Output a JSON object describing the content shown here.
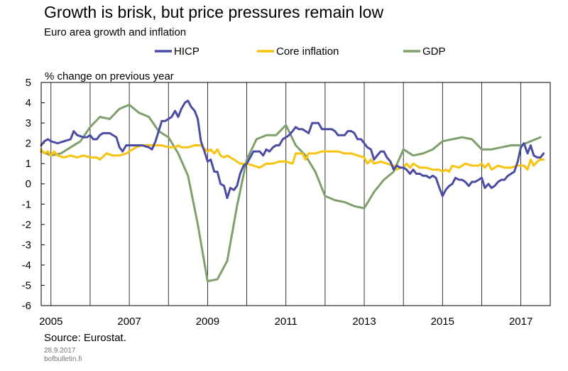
{
  "chart_data": {
    "type": "line",
    "title": "Growth is brisk, but price pressures remain low",
    "subtitle": "Euro area growth and inflation",
    "ylabel": "% change on previous year",
    "xlabel": "",
    "ylim": [
      -6,
      5
    ],
    "xlim": [
      2004.75,
      2017.75
    ],
    "y_ticks": [
      5,
      4,
      3,
      2,
      1,
      0,
      -1,
      -2,
      -3,
      -4,
      -5,
      -6
    ],
    "x_tick_labels": [
      "2005",
      "2007",
      "2009",
      "2011",
      "2013",
      "2015",
      "2017"
    ],
    "grid": "vertical",
    "legend_position": "top",
    "series": [
      {
        "name": "HICP",
        "color": "#4b4ca3",
        "points": [
          [
            2004.75,
            1.9
          ],
          [
            2004.83,
            2.1
          ],
          [
            2004.92,
            2.2
          ],
          [
            2005.0,
            2.1
          ],
          [
            2005.17,
            2.0
          ],
          [
            2005.33,
            2.1
          ],
          [
            2005.5,
            2.2
          ],
          [
            2005.58,
            2.6
          ],
          [
            2005.67,
            2.4
          ],
          [
            2005.83,
            2.3
          ],
          [
            2005.92,
            2.3
          ],
          [
            2006.0,
            2.4
          ],
          [
            2006.08,
            2.2
          ],
          [
            2006.17,
            2.2
          ],
          [
            2006.25,
            2.4
          ],
          [
            2006.33,
            2.5
          ],
          [
            2006.5,
            2.5
          ],
          [
            2006.67,
            2.3
          ],
          [
            2006.75,
            1.8
          ],
          [
            2006.83,
            1.6
          ],
          [
            2006.92,
            1.9
          ],
          [
            2007.0,
            1.9
          ],
          [
            2007.17,
            1.9
          ],
          [
            2007.33,
            1.9
          ],
          [
            2007.5,
            1.8
          ],
          [
            2007.58,
            1.7
          ],
          [
            2007.67,
            2.1
          ],
          [
            2007.75,
            2.6
          ],
          [
            2007.83,
            3.1
          ],
          [
            2007.92,
            3.1
          ],
          [
            2008.0,
            3.2
          ],
          [
            2008.08,
            3.3
          ],
          [
            2008.17,
            3.6
          ],
          [
            2008.25,
            3.3
          ],
          [
            2008.33,
            3.7
          ],
          [
            2008.42,
            4.0
          ],
          [
            2008.5,
            4.1
          ],
          [
            2008.58,
            3.8
          ],
          [
            2008.67,
            3.6
          ],
          [
            2008.75,
            3.2
          ],
          [
            2008.83,
            2.1
          ],
          [
            2008.92,
            1.6
          ],
          [
            2009.0,
            1.1
          ],
          [
            2009.08,
            1.2
          ],
          [
            2009.17,
            0.6
          ],
          [
            2009.25,
            0.6
          ],
          [
            2009.33,
            0.0
          ],
          [
            2009.42,
            -0.1
          ],
          [
            2009.5,
            -0.7
          ],
          [
            2009.58,
            -0.2
          ],
          [
            2009.67,
            -0.3
          ],
          [
            2009.75,
            -0.1
          ],
          [
            2009.83,
            0.5
          ],
          [
            2009.92,
            0.9
          ],
          [
            2010.0,
            1.0
          ],
          [
            2010.17,
            1.6
          ],
          [
            2010.33,
            1.6
          ],
          [
            2010.42,
            1.4
          ],
          [
            2010.5,
            1.7
          ],
          [
            2010.58,
            1.6
          ],
          [
            2010.67,
            1.8
          ],
          [
            2010.75,
            1.9
          ],
          [
            2010.83,
            1.9
          ],
          [
            2010.92,
            2.2
          ],
          [
            2011.0,
            2.3
          ],
          [
            2011.08,
            2.4
          ],
          [
            2011.17,
            2.6
          ],
          [
            2011.25,
            2.8
          ],
          [
            2011.33,
            2.7
          ],
          [
            2011.42,
            2.7
          ],
          [
            2011.5,
            2.6
          ],
          [
            2011.58,
            2.5
          ],
          [
            2011.67,
            3.0
          ],
          [
            2011.83,
            3.0
          ],
          [
            2011.92,
            2.7
          ],
          [
            2012.0,
            2.7
          ],
          [
            2012.17,
            2.7
          ],
          [
            2012.25,
            2.6
          ],
          [
            2012.33,
            2.4
          ],
          [
            2012.5,
            2.4
          ],
          [
            2012.58,
            2.6
          ],
          [
            2012.67,
            2.6
          ],
          [
            2012.75,
            2.5
          ],
          [
            2012.83,
            2.2
          ],
          [
            2012.92,
            2.2
          ],
          [
            2013.0,
            2.0
          ],
          [
            2013.08,
            1.8
          ],
          [
            2013.17,
            1.7
          ],
          [
            2013.25,
            1.2
          ],
          [
            2013.33,
            1.4
          ],
          [
            2013.42,
            1.6
          ],
          [
            2013.5,
            1.6
          ],
          [
            2013.58,
            1.3
          ],
          [
            2013.67,
            1.1
          ],
          [
            2013.75,
            0.7
          ],
          [
            2013.83,
            0.9
          ],
          [
            2013.92,
            0.8
          ],
          [
            2014.0,
            0.8
          ],
          [
            2014.08,
            0.7
          ],
          [
            2014.17,
            0.5
          ],
          [
            2014.25,
            0.7
          ],
          [
            2014.33,
            0.5
          ],
          [
            2014.42,
            0.5
          ],
          [
            2014.5,
            0.4
          ],
          [
            2014.58,
            0.4
          ],
          [
            2014.67,
            0.3
          ],
          [
            2014.75,
            0.4
          ],
          [
            2014.83,
            0.3
          ],
          [
            2014.92,
            -0.2
          ],
          [
            2015.0,
            -0.6
          ],
          [
            2015.08,
            -0.3
          ],
          [
            2015.17,
            -0.1
          ],
          [
            2015.25,
            0.0
          ],
          [
            2015.33,
            0.3
          ],
          [
            2015.42,
            0.2
          ],
          [
            2015.5,
            0.2
          ],
          [
            2015.58,
            0.1
          ],
          [
            2015.67,
            -0.1
          ],
          [
            2015.75,
            0.1
          ],
          [
            2015.83,
            0.1
          ],
          [
            2015.92,
            0.2
          ],
          [
            2016.0,
            0.3
          ],
          [
            2016.08,
            -0.2
          ],
          [
            2016.17,
            0.0
          ],
          [
            2016.25,
            -0.2
          ],
          [
            2016.33,
            -0.1
          ],
          [
            2016.42,
            0.1
          ],
          [
            2016.5,
            0.2
          ],
          [
            2016.58,
            0.2
          ],
          [
            2016.67,
            0.4
          ],
          [
            2016.75,
            0.5
          ],
          [
            2016.83,
            0.6
          ],
          [
            2016.92,
            1.1
          ],
          [
            2017.0,
            1.8
          ],
          [
            2017.08,
            2.0
          ],
          [
            2017.17,
            1.5
          ],
          [
            2017.25,
            1.9
          ],
          [
            2017.33,
            1.4
          ],
          [
            2017.42,
            1.3
          ],
          [
            2017.5,
            1.3
          ],
          [
            2017.58,
            1.5
          ]
        ]
      },
      {
        "name": "Core inflation",
        "color": "#f7c30f",
        "points": [
          [
            2004.75,
            1.7
          ],
          [
            2004.83,
            1.5
          ],
          [
            2004.92,
            1.6
          ],
          [
            2005.0,
            1.4
          ],
          [
            2005.08,
            1.6
          ],
          [
            2005.17,
            1.4
          ],
          [
            2005.33,
            1.3
          ],
          [
            2005.5,
            1.4
          ],
          [
            2005.67,
            1.3
          ],
          [
            2005.83,
            1.4
          ],
          [
            2006.0,
            1.3
          ],
          [
            2006.17,
            1.3
          ],
          [
            2006.25,
            1.2
          ],
          [
            2006.42,
            1.5
          ],
          [
            2006.58,
            1.4
          ],
          [
            2006.75,
            1.4
          ],
          [
            2006.92,
            1.5
          ],
          [
            2007.0,
            1.6
          ],
          [
            2007.17,
            1.8
          ],
          [
            2007.33,
            1.9
          ],
          [
            2007.5,
            1.9
          ],
          [
            2007.67,
            1.9
          ],
          [
            2007.83,
            1.9
          ],
          [
            2008.0,
            1.8
          ],
          [
            2008.17,
            1.8
          ],
          [
            2008.25,
            1.9
          ],
          [
            2008.33,
            1.8
          ],
          [
            2008.5,
            1.8
          ],
          [
            2008.67,
            1.9
          ],
          [
            2008.83,
            1.9
          ],
          [
            2009.0,
            1.6
          ],
          [
            2009.08,
            1.7
          ],
          [
            2009.17,
            1.5
          ],
          [
            2009.25,
            1.7
          ],
          [
            2009.33,
            1.4
          ],
          [
            2009.42,
            1.3
          ],
          [
            2009.5,
            1.4
          ],
          [
            2009.67,
            1.2
          ],
          [
            2009.83,
            1.0
          ],
          [
            2010.0,
            1.0
          ],
          [
            2010.17,
            0.9
          ],
          [
            2010.33,
            0.8
          ],
          [
            2010.5,
            1.0
          ],
          [
            2010.67,
            1.0
          ],
          [
            2010.83,
            1.1
          ],
          [
            2011.0,
            1.1
          ],
          [
            2011.17,
            1.0
          ],
          [
            2011.25,
            1.5
          ],
          [
            2011.42,
            1.5
          ],
          [
            2011.5,
            1.2
          ],
          [
            2011.58,
            1.5
          ],
          [
            2011.75,
            1.5
          ],
          [
            2011.92,
            1.6
          ],
          [
            2012.0,
            1.6
          ],
          [
            2012.17,
            1.6
          ],
          [
            2012.33,
            1.6
          ],
          [
            2012.5,
            1.5
          ],
          [
            2012.67,
            1.5
          ],
          [
            2012.83,
            1.4
          ],
          [
            2013.0,
            1.3
          ],
          [
            2013.08,
            1.0
          ],
          [
            2013.17,
            1.2
          ],
          [
            2013.25,
            1.0
          ],
          [
            2013.42,
            1.1
          ],
          [
            2013.58,
            1.0
          ],
          [
            2013.75,
            0.9
          ],
          [
            2013.83,
            0.7
          ],
          [
            2013.92,
            0.8
          ],
          [
            2014.0,
            0.8
          ],
          [
            2014.08,
            1.0
          ],
          [
            2014.17,
            0.8
          ],
          [
            2014.25,
            1.0
          ],
          [
            2014.42,
            0.8
          ],
          [
            2014.58,
            0.8
          ],
          [
            2014.75,
            0.7
          ],
          [
            2014.92,
            0.7
          ],
          [
            2015.0,
            0.6
          ],
          [
            2015.08,
            0.7
          ],
          [
            2015.17,
            0.6
          ],
          [
            2015.25,
            0.9
          ],
          [
            2015.42,
            0.8
          ],
          [
            2015.58,
            1.0
          ],
          [
            2015.75,
            0.9
          ],
          [
            2015.92,
            0.9
          ],
          [
            2016.0,
            1.0
          ],
          [
            2016.08,
            0.8
          ],
          [
            2016.17,
            1.0
          ],
          [
            2016.25,
            0.7
          ],
          [
            2016.42,
            0.9
          ],
          [
            2016.58,
            0.8
          ],
          [
            2016.75,
            0.8
          ],
          [
            2016.92,
            0.9
          ],
          [
            2017.0,
            0.9
          ],
          [
            2017.08,
            0.9
          ],
          [
            2017.17,
            0.7
          ],
          [
            2017.25,
            1.2
          ],
          [
            2017.33,
            0.9
          ],
          [
            2017.42,
            1.1
          ],
          [
            2017.5,
            1.2
          ],
          [
            2017.58,
            1.2
          ]
        ]
      },
      {
        "name": "GDP",
        "color": "#7f9f6c",
        "points": [
          [
            2004.75,
            1.6
          ],
          [
            2005.0,
            1.4
          ],
          [
            2005.25,
            1.5
          ],
          [
            2005.5,
            1.8
          ],
          [
            2005.75,
            2.1
          ],
          [
            2006.0,
            2.8
          ],
          [
            2006.25,
            3.3
          ],
          [
            2006.5,
            3.2
          ],
          [
            2006.75,
            3.7
          ],
          [
            2007.0,
            3.9
          ],
          [
            2007.25,
            3.5
          ],
          [
            2007.5,
            3.3
          ],
          [
            2007.75,
            2.6
          ],
          [
            2008.0,
            2.3
          ],
          [
            2008.25,
            1.5
          ],
          [
            2008.5,
            0.4
          ],
          [
            2008.75,
            -2.0
          ],
          [
            2009.0,
            -4.8
          ],
          [
            2009.25,
            -4.7
          ],
          [
            2009.5,
            -3.8
          ],
          [
            2009.75,
            -1.1
          ],
          [
            2010.0,
            1.2
          ],
          [
            2010.25,
            2.2
          ],
          [
            2010.5,
            2.4
          ],
          [
            2010.75,
            2.4
          ],
          [
            2011.0,
            2.9
          ],
          [
            2011.25,
            1.9
          ],
          [
            2011.5,
            1.4
          ],
          [
            2011.75,
            0.6
          ],
          [
            2012.0,
            -0.6
          ],
          [
            2012.25,
            -0.8
          ],
          [
            2012.5,
            -0.9
          ],
          [
            2012.75,
            -1.1
          ],
          [
            2013.0,
            -1.2
          ],
          [
            2013.25,
            -0.4
          ],
          [
            2013.5,
            0.2
          ],
          [
            2013.75,
            0.6
          ],
          [
            2014.0,
            1.7
          ],
          [
            2014.25,
            1.4
          ],
          [
            2014.5,
            1.5
          ],
          [
            2014.75,
            1.7
          ],
          [
            2015.0,
            2.1
          ],
          [
            2015.25,
            2.2
          ],
          [
            2015.5,
            2.3
          ],
          [
            2015.75,
            2.2
          ],
          [
            2016.0,
            1.7
          ],
          [
            2016.25,
            1.7
          ],
          [
            2016.5,
            1.8
          ],
          [
            2016.75,
            1.9
          ],
          [
            2017.0,
            1.9
          ],
          [
            2017.25,
            2.1
          ],
          [
            2017.5,
            2.3
          ]
        ]
      }
    ]
  },
  "footer": {
    "source": "Source: Eurostat.",
    "date": "28.9.2017",
    "site": "bofbulletin.fi"
  }
}
